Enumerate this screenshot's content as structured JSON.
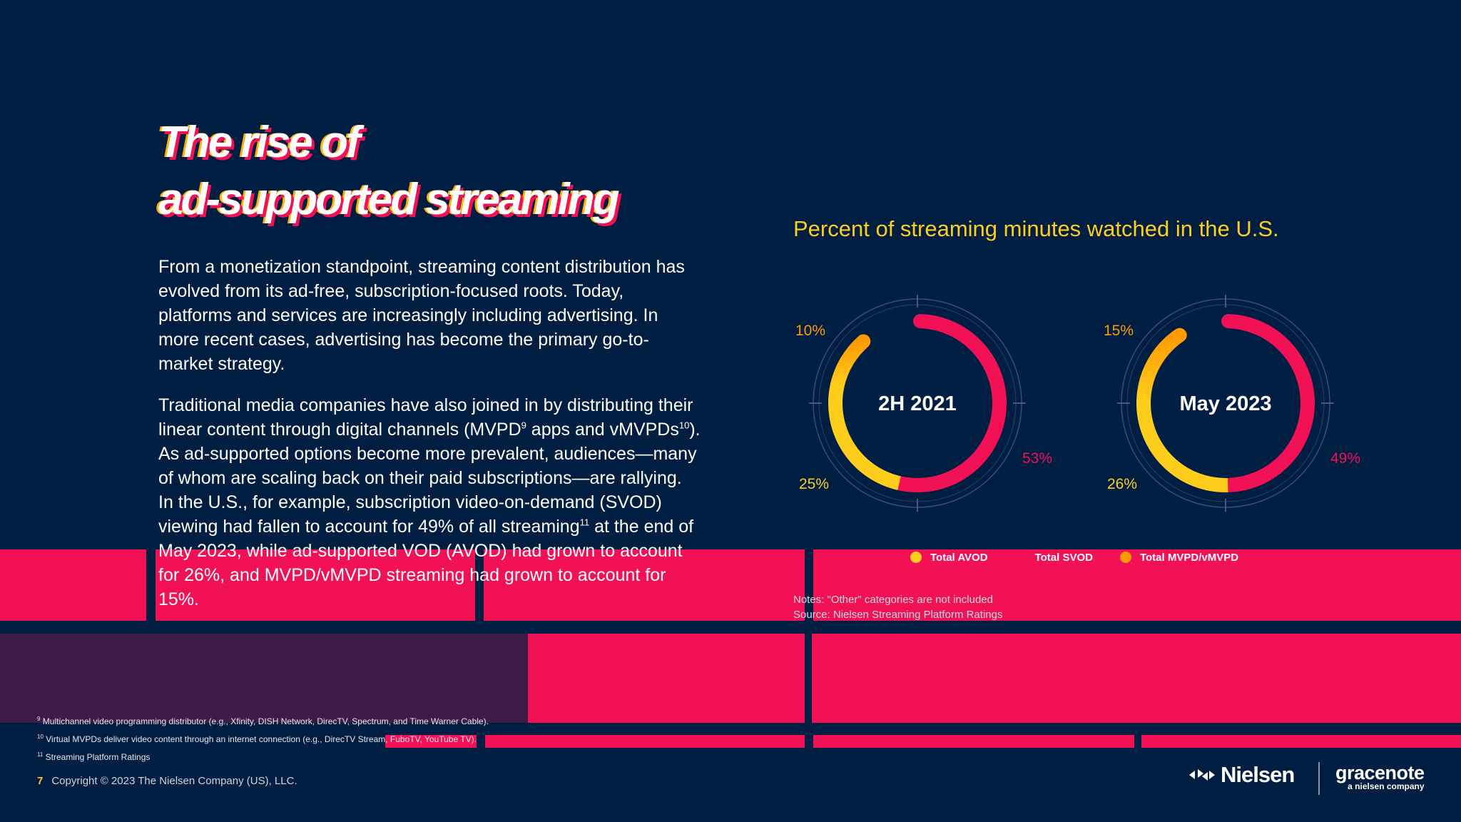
{
  "slide": {
    "title_line1": "The rise of",
    "title_line2": "ad-supported streaming",
    "paragraph1": "From a monetization standpoint, streaming content distribution has evolved from its ad-free, subscription-focused roots. Today, platforms and services are increasingly including advertising. In more recent cases, advertising has become the primary go-to-market strategy.",
    "paragraph2_a": "Traditional media companies have also joined in by distributing their linear content through digital channels (MVPD",
    "paragraph2_sup1": "9",
    "paragraph2_b": " apps and vMVPDs",
    "paragraph2_sup2": "10",
    "paragraph2_c": "). As ad-supported options become more prevalent, audiences—many of whom are scaling back on their paid subscriptions—are rallying. In the U.S., for example, subscription video-on-demand (SVOD) viewing had fallen to account for 49% of all streaming",
    "paragraph2_sup3": "11",
    "paragraph2_d": " at the end of May 2023, while ad-supported VOD (AVOD) had grown to account for 26%, and MVPD/vMVPD streaming had grown to account for 15%."
  },
  "chart_data": {
    "type": "pie",
    "title": "Percent of streaming minutes watched in the U.S.",
    "charts": [
      {
        "label": "2H 2021",
        "values": {
          "Total AVOD": 25,
          "Total SVOD": 53,
          "Total MVPD/vMVPD": 10
        },
        "labels": {
          "avod": "25%",
          "svod": "53%",
          "mvpd": "10%"
        }
      },
      {
        "label": "May 2023",
        "values": {
          "Total AVOD": 26,
          "Total SVOD": 49,
          "Total MVPD/vMVPD": 15
        },
        "labels": {
          "avod": "26%",
          "svod": "49%",
          "mvpd": "15%"
        }
      }
    ],
    "legend": [
      {
        "name": "Total AVOD",
        "color": "#ffcd1c"
      },
      {
        "name": "Total SVOD",
        "color": "#f21155"
      },
      {
        "name": "Total MVPD/vMVPD",
        "color": "#ff9a00"
      }
    ],
    "colors": {
      "avod": "#ffcd1c",
      "svod": "#f21155",
      "mvpd": "#ff9a00"
    }
  },
  "notes": {
    "line1": "Notes: \"Other\" categories are not included",
    "line2": "Source: Nielsen Streaming Platform Ratings"
  },
  "footnotes": {
    "f9_num": "9",
    "f9": " Multichannel video programming distributor (e.g., Xfinity, DISH Network, DirecTV, Spectrum, and Time Warner Cable).",
    "f10_num": "10",
    "f10": " Virtual MVPDs deliver video content through an internet connection (e.g., DirecTV Stream, FuboTV, YouTube TV).",
    "f11_num": "11",
    "f11": " Streaming Platform Ratings"
  },
  "footer": {
    "page_number": "7",
    "copyright": "Copyright © 2023 The Nielsen Company (US), LLC.",
    "logo_nielsen": "Nielsen",
    "logo_gracenote": "gracenote",
    "logo_gracenote_sub": "a nielsen company"
  }
}
